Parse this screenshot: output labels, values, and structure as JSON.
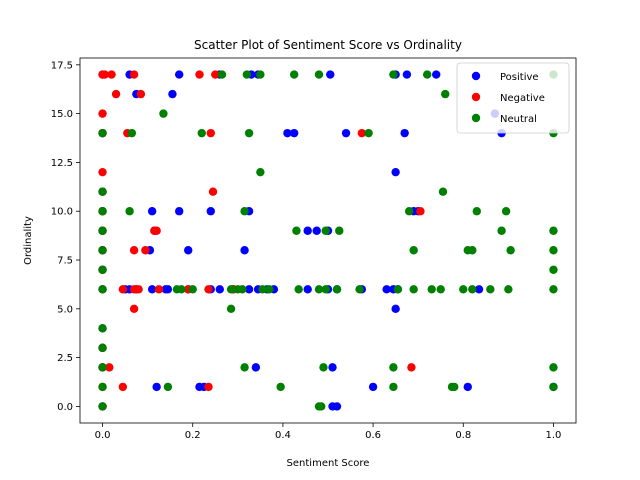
{
  "chart_data": {
    "type": "scatter",
    "title": "Scatter Plot of Sentiment Score vs Ordinality",
    "xlabel": "Sentiment Score",
    "ylabel": "Ordinality",
    "xlim": [
      -0.05,
      1.05
    ],
    "ylim": [
      -0.85,
      17.85
    ],
    "x_ticks": [
      0.0,
      0.2,
      0.4,
      0.6,
      0.8,
      1.0
    ],
    "x_tick_labels": [
      "0.0",
      "0.2",
      "0.4",
      "0.6",
      "0.8",
      "1.0"
    ],
    "y_ticks": [
      0.0,
      2.5,
      5.0,
      7.5,
      10.0,
      12.5,
      15.0,
      17.5
    ],
    "y_tick_labels": [
      "0.0",
      "2.5",
      "5.0",
      "7.5",
      "10.0",
      "12.5",
      "15.0",
      "17.5"
    ],
    "grid": false,
    "legend_position": "top-right",
    "series": [
      {
        "name": "Positive",
        "color": "#0000ff",
        "points": [
          [
            0,
            17
          ],
          [
            0,
            14
          ],
          [
            0,
            11
          ],
          [
            0,
            10
          ],
          [
            0,
            9
          ],
          [
            0,
            8
          ],
          [
            0,
            7
          ],
          [
            0,
            6
          ],
          [
            0,
            4
          ],
          [
            0,
            3
          ],
          [
            0,
            2
          ],
          [
            0,
            0
          ],
          [
            0.06,
            17
          ],
          [
            0.075,
            16
          ],
          [
            0.155,
            16
          ],
          [
            0.17,
            17
          ],
          [
            0.26,
            17
          ],
          [
            0.33,
            17
          ],
          [
            0.345,
            17
          ],
          [
            0.505,
            17
          ],
          [
            0.65,
            17
          ],
          [
            0.675,
            17
          ],
          [
            0.74,
            17
          ],
          [
            0.41,
            14
          ],
          [
            0.425,
            14
          ],
          [
            0.54,
            14
          ],
          [
            0.67,
            14
          ],
          [
            0.885,
            14
          ],
          [
            0.87,
            15
          ],
          [
            0.65,
            12
          ],
          [
            0.11,
            10
          ],
          [
            0.17,
            10
          ],
          [
            0.24,
            10
          ],
          [
            0.325,
            10
          ],
          [
            0.69,
            10
          ],
          [
            0.7,
            10
          ],
          [
            0.115,
            9
          ],
          [
            0.455,
            9
          ],
          [
            0.475,
            9
          ],
          [
            0.5,
            9
          ],
          [
            0.105,
            8
          ],
          [
            0.19,
            8
          ],
          [
            0.315,
            8
          ],
          [
            0.05,
            6
          ],
          [
            0.06,
            6
          ],
          [
            0.075,
            6
          ],
          [
            0.11,
            6
          ],
          [
            0.14,
            6
          ],
          [
            0.145,
            6
          ],
          [
            0.19,
            6
          ],
          [
            0.24,
            6
          ],
          [
            0.26,
            6
          ],
          [
            0.29,
            6
          ],
          [
            0.325,
            6
          ],
          [
            0.345,
            6
          ],
          [
            0.365,
            6
          ],
          [
            0.38,
            6
          ],
          [
            0.455,
            6
          ],
          [
            0.5,
            6
          ],
          [
            0.52,
            6
          ],
          [
            0.575,
            6
          ],
          [
            0.63,
            6
          ],
          [
            0.645,
            6
          ],
          [
            0.655,
            6
          ],
          [
            0.835,
            6
          ],
          [
            0.65,
            5
          ],
          [
            0.12,
            1
          ],
          [
            0.215,
            1
          ],
          [
            0.225,
            1
          ],
          [
            0.34,
            2
          ],
          [
            0.51,
            2
          ],
          [
            0.6,
            1
          ],
          [
            0.81,
            1
          ],
          [
            0.51,
            0
          ],
          [
            0.52,
            0
          ],
          [
            1,
            1
          ]
        ]
      },
      {
        "name": "Negative",
        "color": "#ff0000",
        "points": [
          [
            0,
            17
          ],
          [
            0,
            15
          ],
          [
            0,
            14
          ],
          [
            0,
            12
          ],
          [
            0,
            11
          ],
          [
            0,
            10
          ],
          [
            0,
            9
          ],
          [
            0,
            8
          ],
          [
            0,
            7
          ],
          [
            0,
            6
          ],
          [
            0,
            3
          ],
          [
            0,
            2
          ],
          [
            0,
            1
          ],
          [
            0,
            0
          ],
          [
            0.005,
            17
          ],
          [
            0.02,
            17
          ],
          [
            0.03,
            16
          ],
          [
            0.07,
            17
          ],
          [
            0.085,
            16
          ],
          [
            0.215,
            17
          ],
          [
            0.25,
            17
          ],
          [
            0.055,
            14
          ],
          [
            0.24,
            14
          ],
          [
            0.575,
            14
          ],
          [
            0.245,
            11
          ],
          [
            0.115,
            9
          ],
          [
            0.12,
            9
          ],
          [
            0.705,
            10
          ],
          [
            0.07,
            8
          ],
          [
            0.095,
            8
          ],
          [
            0.045,
            6
          ],
          [
            0.07,
            6
          ],
          [
            0.075,
            6
          ],
          [
            0.08,
            6
          ],
          [
            0.125,
            6
          ],
          [
            0.19,
            6
          ],
          [
            0.235,
            6
          ],
          [
            0.29,
            6
          ],
          [
            0.07,
            5
          ],
          [
            0.015,
            2
          ],
          [
            0.685,
            2
          ],
          [
            0.045,
            1
          ],
          [
            0.235,
            1
          ]
        ]
      },
      {
        "name": "Neutral",
        "color": "#008000",
        "points": [
          [
            0,
            14
          ],
          [
            0,
            11
          ],
          [
            0,
            10
          ],
          [
            0,
            9
          ],
          [
            0,
            8
          ],
          [
            0,
            7
          ],
          [
            0,
            6
          ],
          [
            0,
            4
          ],
          [
            0,
            3
          ],
          [
            0,
            2
          ],
          [
            0,
            1
          ],
          [
            0,
            0
          ],
          [
            0.265,
            17
          ],
          [
            0.32,
            17
          ],
          [
            0.35,
            17
          ],
          [
            0.425,
            17
          ],
          [
            0.48,
            17
          ],
          [
            0.645,
            17
          ],
          [
            0.72,
            17
          ],
          [
            0.76,
            16
          ],
          [
            1,
            17
          ],
          [
            0.065,
            14
          ],
          [
            0.135,
            15
          ],
          [
            0.22,
            14
          ],
          [
            0.325,
            14
          ],
          [
            0.59,
            14
          ],
          [
            1,
            14
          ],
          [
            0.35,
            12
          ],
          [
            0.755,
            11
          ],
          [
            0.06,
            10
          ],
          [
            0.315,
            10
          ],
          [
            0.68,
            10
          ],
          [
            0.83,
            10
          ],
          [
            0.895,
            10
          ],
          [
            0.43,
            9
          ],
          [
            0.495,
            9
          ],
          [
            0.525,
            9
          ],
          [
            0.885,
            9
          ],
          [
            1,
            9
          ],
          [
            0.69,
            8
          ],
          [
            0.81,
            8
          ],
          [
            0.82,
            8
          ],
          [
            0.905,
            8
          ],
          [
            1,
            8
          ],
          [
            1,
            7
          ],
          [
            0.165,
            6
          ],
          [
            0.175,
            6
          ],
          [
            0.2,
            6
          ],
          [
            0.285,
            6
          ],
          [
            0.3,
            6
          ],
          [
            0.31,
            6
          ],
          [
            0.355,
            6
          ],
          [
            0.37,
            6
          ],
          [
            0.435,
            6
          ],
          [
            0.48,
            6
          ],
          [
            0.495,
            6
          ],
          [
            0.52,
            6
          ],
          [
            0.57,
            6
          ],
          [
            0.655,
            6
          ],
          [
            0.69,
            6
          ],
          [
            0.73,
            6
          ],
          [
            0.75,
            6
          ],
          [
            0.8,
            6
          ],
          [
            0.82,
            6
          ],
          [
            0.86,
            6
          ],
          [
            0.9,
            6
          ],
          [
            1,
            6
          ],
          [
            0.285,
            5
          ],
          [
            0.315,
            2
          ],
          [
            0.49,
            2
          ],
          [
            0.645,
            2
          ],
          [
            1,
            2
          ],
          [
            0.145,
            1
          ],
          [
            0.395,
            1
          ],
          [
            0.645,
            1
          ],
          [
            0.775,
            1
          ],
          [
            0.78,
            1
          ],
          [
            1,
            1
          ],
          [
            0.48,
            0
          ],
          [
            0.485,
            0
          ]
        ]
      }
    ]
  }
}
